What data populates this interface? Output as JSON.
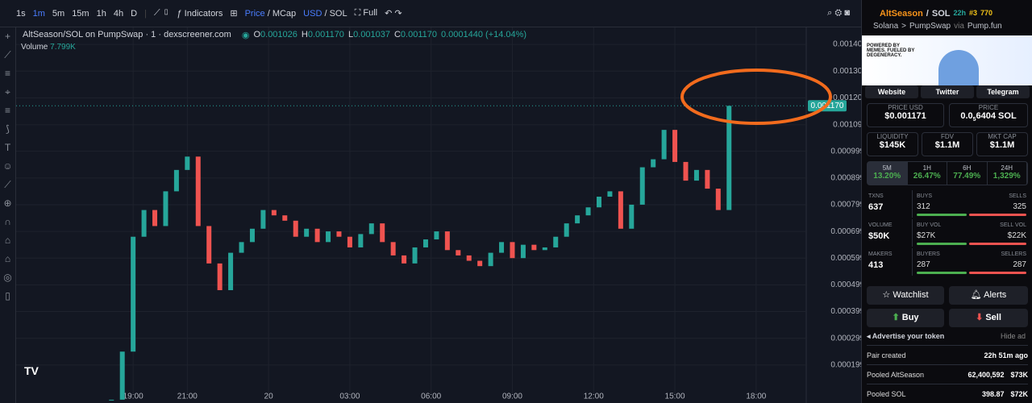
{
  "toolbar": {
    "intervals": [
      "1s",
      "1m",
      "5m",
      "15m",
      "1h",
      "4h",
      "D"
    ],
    "indicators": "Indicators",
    "price": "Price",
    "mcap": "/ MCap",
    "usd": "USD",
    "sol": "/ SOL",
    "full": "Full"
  },
  "legend": {
    "title": "AltSeason/SOL on PumpSwap · 1 · dexscreener.com",
    "o": "O",
    "o_val": "0.001026",
    "h": "H",
    "h_val": "0.001170",
    "l": "L",
    "l_val": "0.001037",
    "c": "C",
    "c_val": "0.001170",
    "change": "0.0001440 (+14.04%)",
    "volume": "Volume",
    "volume_val": "7.799K"
  },
  "chart": {
    "type": "candlestick",
    "x": [
      18.2,
      18.6,
      19.0,
      19.4,
      19.8,
      20.2,
      20.6,
      21.0,
      21.4,
      21.8,
      22.2,
      22.6,
      23.0,
      23.4,
      23.8,
      24.2,
      24.6,
      25.0,
      25.4,
      25.8,
      26.2,
      26.6,
      27.0,
      27.4,
      27.8,
      28.2,
      28.6,
      29.0,
      29.4,
      29.8,
      30.2,
      30.6,
      31.0,
      31.4,
      31.8,
      32.2,
      32.6,
      33.0,
      33.4,
      33.8,
      34.2,
      34.6,
      35.0,
      35.4,
      35.8,
      36.2,
      36.6,
      37.0,
      37.4,
      37.8,
      38.2,
      38.6,
      39.0,
      39.4,
      39.8,
      40.2,
      40.6,
      41.0
    ],
    "closes": [
      7e-05,
      0.00025,
      0.00068,
      0.00078,
      0.00072,
      0.00085,
      0.00093,
      0.00098,
      0.00072,
      0.00058,
      0.00048,
      0.00062,
      0.00066,
      0.00071,
      0.00078,
      0.00076,
      0.00074,
      0.00068,
      0.00071,
      0.00066,
      0.0007,
      0.00068,
      0.00064,
      0.00069,
      0.00073,
      0.00066,
      0.00061,
      0.00058,
      0.00064,
      0.00067,
      0.0007,
      0.00063,
      0.00061,
      0.00059,
      0.00057,
      0.00062,
      0.00066,
      0.0006,
      0.00065,
      0.00063,
      0.00064,
      0.00068,
      0.00073,
      0.00076,
      0.00079,
      0.00083,
      0.00085,
      0.00071,
      0.0008,
      0.00094,
      0.00097,
      0.00108,
      0.00096,
      0.00089,
      0.00093,
      0.00086,
      0.00078,
      0.00117
    ],
    "xlim": [
      14.68,
      43.85
    ],
    "ylim": [
      5.76e-05,
      0.0014636
    ],
    "xticks": [
      {
        "value": 19,
        "label": "19:00"
      },
      {
        "value": 21,
        "label": "21:00"
      },
      {
        "value": 24,
        "label": "20"
      },
      {
        "value": 27,
        "label": "03:00"
      },
      {
        "value": 30,
        "label": "06:00"
      },
      {
        "value": 33,
        "label": "09:00"
      },
      {
        "value": 36,
        "label": "12:00"
      },
      {
        "value": 39,
        "label": "15:00"
      },
      {
        "value": 42,
        "label": "18:00"
      }
    ],
    "yticks": [
      {
        "value": 0.0014,
        "label": "0.001400"
      },
      {
        "value": 0.0013,
        "label": "0.001300"
      },
      {
        "value": 0.0012,
        "label": "0.001200"
      },
      {
        "value": 0.001099,
        "label": "0.001099"
      },
      {
        "value": 0.0009999,
        "label": "0.0009999"
      },
      {
        "value": 0.0008999,
        "label": "0.0008999"
      },
      {
        "value": 0.0007999,
        "label": "0.0007999"
      },
      {
        "value": 0.0006999,
        "label": "0.0006999"
      },
      {
        "value": 0.0005999,
        "label": "0.0005999"
      },
      {
        "value": 0.0004999,
        "label": "0.0004999"
      },
      {
        "value": 0.0003999,
        "label": "0.0003999"
      },
      {
        "value": 0.0002999,
        "label": "0.0002999"
      },
      {
        "value": 0.0001999,
        "label": "0.0001999"
      }
    ],
    "last_price": {
      "value": 0.00117,
      "label": "0.001170"
    },
    "up_color": "#26a69a",
    "down_color": "#ef5350"
  },
  "panel": {
    "name": "AltSeason",
    "slash": "/",
    "quote": "SOL",
    "age": "22h",
    "rank": "#3",
    "boosts": "770",
    "chain": "Solana",
    "sep": ">",
    "dex": "PumpSwap",
    "via": "via",
    "launchpad": "Pump.fun",
    "banner": "POWERED BY MEMES. FUELED BY DEGENERACY.",
    "links": [
      "Website",
      "Twitter",
      "Telegram"
    ],
    "price_usd_label": "PRICE USD",
    "price_usd": "$0.001171",
    "price_label": "PRICE",
    "price_a": "0.0",
    "price_sub": "5",
    "price_b": "6404 SOL",
    "liq_label": "LIQUIDITY",
    "liq": "$145K",
    "fdv_label": "FDV",
    "fdv": "$1.1M",
    "mcap_label": "MKT CAP",
    "mcap": "$1.1M",
    "tabs": [
      [
        "5M",
        "13.20%"
      ],
      [
        "1H",
        "26.47%"
      ],
      [
        "6H",
        "77.49%"
      ],
      [
        "24H",
        "1,329%"
      ]
    ],
    "stats": [
      [
        "TXNS",
        "637",
        "BUYS",
        "312",
        "SELLS",
        "325"
      ],
      [
        "VOLUME",
        "$50K",
        "BUY VOL",
        "$27K",
        "SELL VOL",
        "$22K"
      ],
      [
        "MAKERS",
        "413",
        "BUYERS",
        "287",
        "SELLERS",
        "287"
      ]
    ],
    "watchlist": "Watchlist",
    "alerts": "Alerts",
    "buy": "Buy",
    "sell": "Sell",
    "advertise": "Advertise your token",
    "hide_ad": "Hide ad",
    "rows": [
      [
        "Pair created",
        "22h 51m ago",
        ""
      ],
      [
        "Pooled AltSeason",
        "62,400,592",
        "$73K"
      ],
      [
        "Pooled SOL",
        "398.87",
        "$72K"
      ]
    ]
  }
}
